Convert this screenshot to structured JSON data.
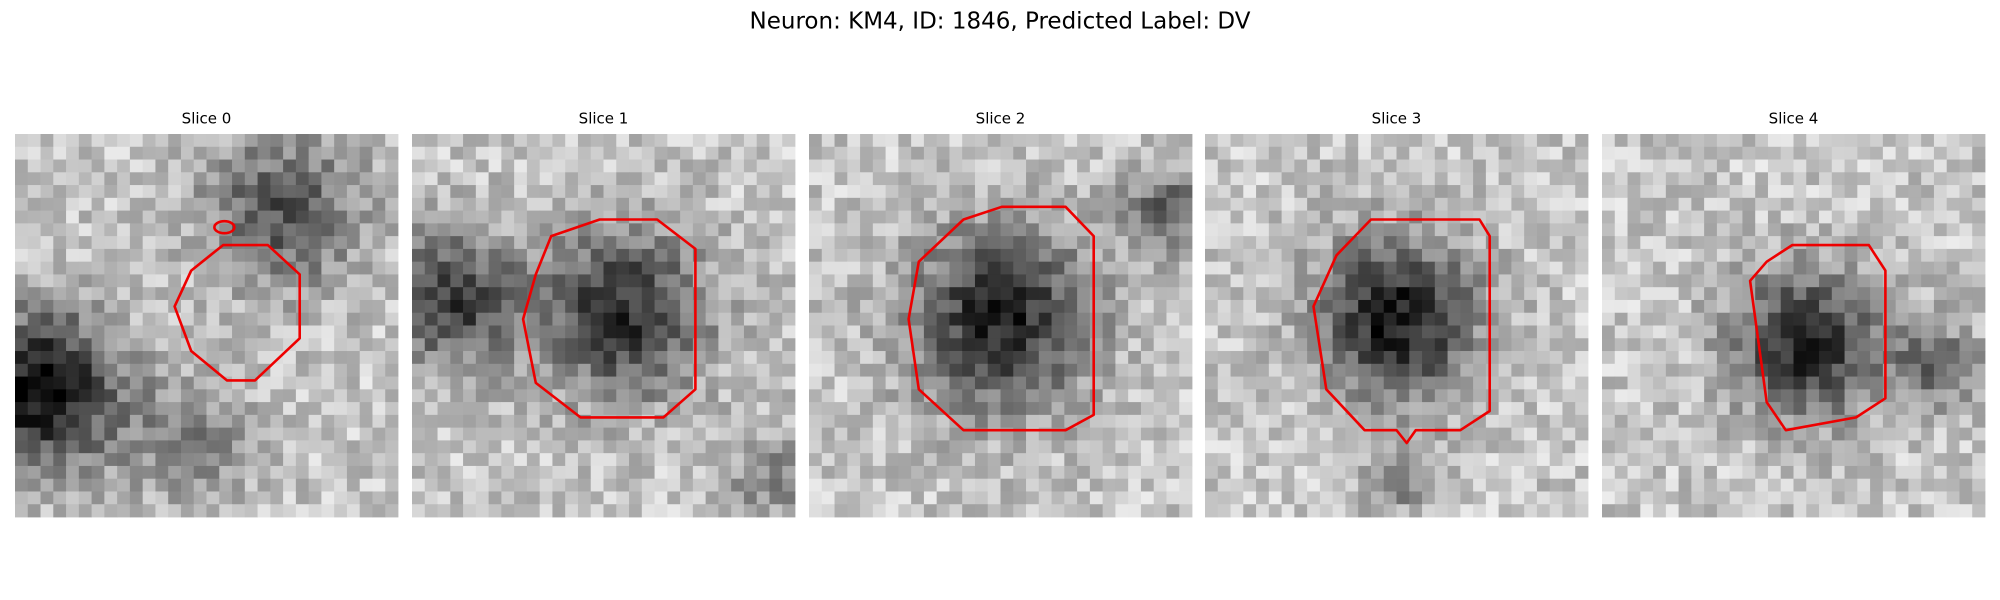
{
  "title": "Neuron: KM4, ID: 1846, Predicted Label: DV",
  "panels": [
    {
      "title": "Slice 0"
    },
    {
      "title": "Slice 1"
    },
    {
      "title": "Slice 2"
    },
    {
      "title": "Slice 3"
    },
    {
      "title": "Slice 4"
    }
  ]
}
